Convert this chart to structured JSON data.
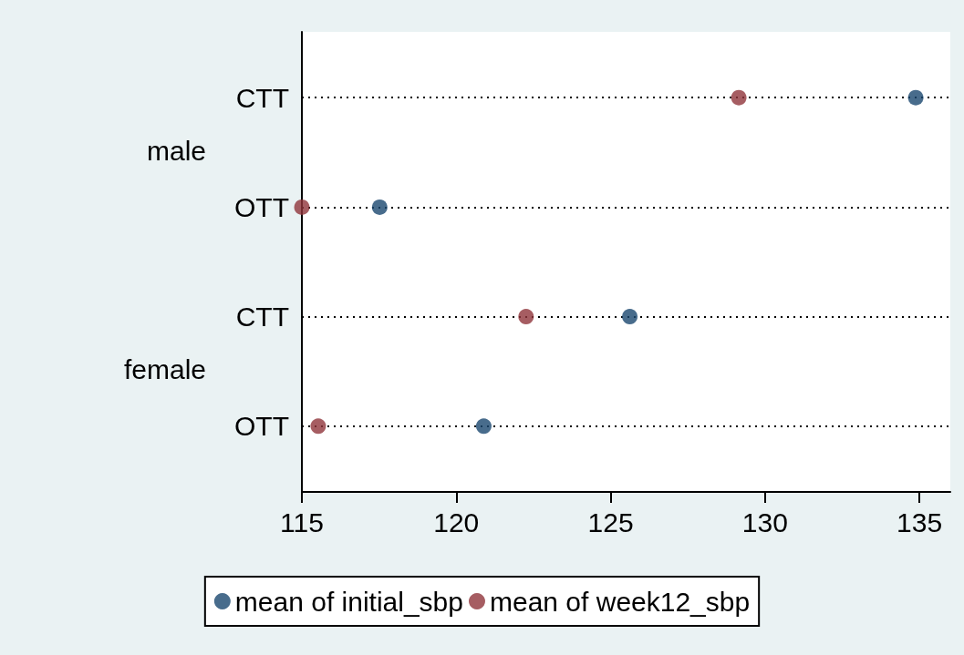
{
  "chart_data": {
    "type": "scatter",
    "orientation": "horizontal",
    "categories": [
      "CTT",
      "OTT",
      "CTT",
      "OTT"
    ],
    "annotations": [
      "male",
      "female"
    ],
    "series": [
      {
        "name": "mean of initial_sbp",
        "color": "#1a476f",
        "values": [
          134.88,
          117.52,
          125.62,
          120.89
        ]
      },
      {
        "name": "mean of week12_sbp",
        "color": "#90353b",
        "values": [
          129.15,
          115.0,
          122.26,
          115.53
        ]
      }
    ],
    "xlim": [
      115,
      136
    ],
    "xticks": [
      115,
      120,
      125,
      130,
      135
    ],
    "grid": "y",
    "legend": "bottom",
    "marker": "circle"
  }
}
